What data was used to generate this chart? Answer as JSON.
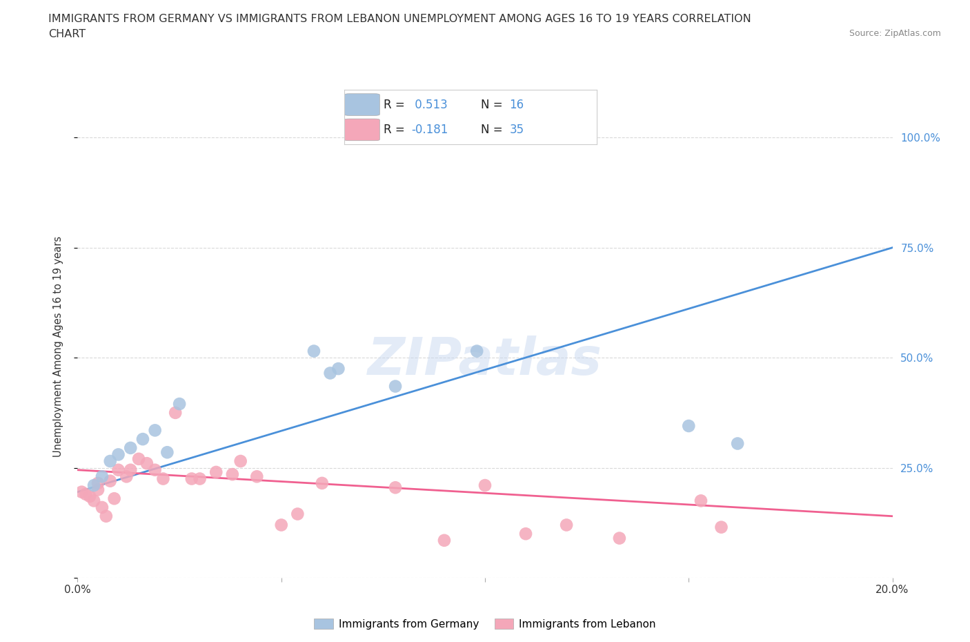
{
  "title_line1": "IMMIGRANTS FROM GERMANY VS IMMIGRANTS FROM LEBANON UNEMPLOYMENT AMONG AGES 16 TO 19 YEARS CORRELATION",
  "title_line2": "CHART",
  "source": "Source: ZipAtlas.com",
  "ylabel": "Unemployment Among Ages 16 to 19 years",
  "xlim": [
    0.0,
    0.2
  ],
  "ylim": [
    0.0,
    1.05
  ],
  "ytick_vals": [
    0.0,
    0.25,
    0.5,
    0.75,
    1.0
  ],
  "ytick_labels": [
    "",
    "25.0%",
    "50.0%",
    "75.0%",
    "100.0%"
  ],
  "xtick_vals": [
    0.0,
    0.05,
    0.1,
    0.15,
    0.2
  ],
  "xtick_labels": [
    "0.0%",
    "",
    "",
    "",
    "20.0%"
  ],
  "germany_r": 0.513,
  "germany_n": 16,
  "lebanon_r": -0.181,
  "lebanon_n": 35,
  "germany_color": "#a8c4e0",
  "lebanon_color": "#f4a7b9",
  "germany_line_color": "#4a90d9",
  "lebanon_line_color": "#f06090",
  "germany_label": "Immigrants from Germany",
  "lebanon_label": "Immigrants from Lebanon",
  "germany_line_intercept": 0.195,
  "germany_line_slope": 2.775,
  "lebanon_line_intercept": 0.245,
  "lebanon_line_slope": -0.525,
  "germany_x": [
    0.004,
    0.006,
    0.008,
    0.01,
    0.013,
    0.016,
    0.019,
    0.022,
    0.025,
    0.058,
    0.062,
    0.064,
    0.078,
    0.098,
    0.15,
    0.162
  ],
  "germany_y": [
    0.21,
    0.23,
    0.265,
    0.28,
    0.295,
    0.315,
    0.335,
    0.285,
    0.395,
    0.515,
    0.465,
    0.475,
    0.435,
    0.515,
    0.345,
    0.305
  ],
  "lebanon_x": [
    0.001,
    0.002,
    0.003,
    0.004,
    0.005,
    0.005,
    0.006,
    0.007,
    0.008,
    0.009,
    0.01,
    0.012,
    0.013,
    0.015,
    0.017,
    0.019,
    0.021,
    0.024,
    0.028,
    0.03,
    0.034,
    0.038,
    0.04,
    0.044,
    0.05,
    0.054,
    0.06,
    0.078,
    0.09,
    0.1,
    0.11,
    0.12,
    0.133,
    0.153,
    0.158
  ],
  "lebanon_y": [
    0.195,
    0.19,
    0.185,
    0.175,
    0.215,
    0.2,
    0.16,
    0.14,
    0.22,
    0.18,
    0.245,
    0.23,
    0.245,
    0.27,
    0.26,
    0.245,
    0.225,
    0.375,
    0.225,
    0.225,
    0.24,
    0.235,
    0.265,
    0.23,
    0.12,
    0.145,
    0.215,
    0.205,
    0.085,
    0.21,
    0.1,
    0.12,
    0.09,
    0.175,
    0.115
  ],
  "watermark": "ZIPatlas",
  "background_color": "#ffffff",
  "grid_color": "#d0d0d0",
  "text_color": "#333333",
  "tick_color": "#4a90d9"
}
